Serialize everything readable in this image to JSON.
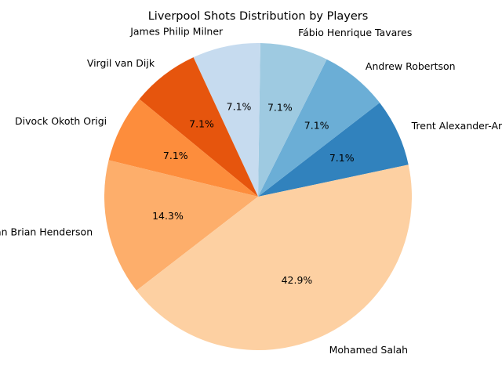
{
  "chart_data": {
    "type": "pie",
    "title": "Liverpool Shots Distribution by Players",
    "start_angle_deg": 12,
    "direction": "counterclockwise",
    "slices": [
      {
        "label": "Trent Alexander-Arnold",
        "value": 1,
        "percent_label": "7.1%",
        "color": "#3182bd"
      },
      {
        "label": "Andrew Robertson",
        "value": 1,
        "percent_label": "7.1%",
        "color": "#6baed6"
      },
      {
        "label": "Fábio Henrique Tavares",
        "value": 1,
        "percent_label": "7.1%",
        "color": "#9ecae1"
      },
      {
        "label": "James Philip Milner",
        "value": 1,
        "percent_label": "7.1%",
        "color": "#c6dbef"
      },
      {
        "label": "Virgil van Dijk",
        "value": 1,
        "percent_label": "7.1%",
        "color": "#e6550d"
      },
      {
        "label": "Divock Okoth Origi",
        "value": 1,
        "percent_label": "7.1%",
        "color": "#fd8d3c"
      },
      {
        "label": "Jordan Brian Henderson",
        "value": 2,
        "percent_label": "14.3%",
        "color": "#fdae6b"
      },
      {
        "label": "Mohamed Salah",
        "value": 6,
        "percent_label": "42.9%",
        "color": "#fdd0a2"
      }
    ]
  }
}
